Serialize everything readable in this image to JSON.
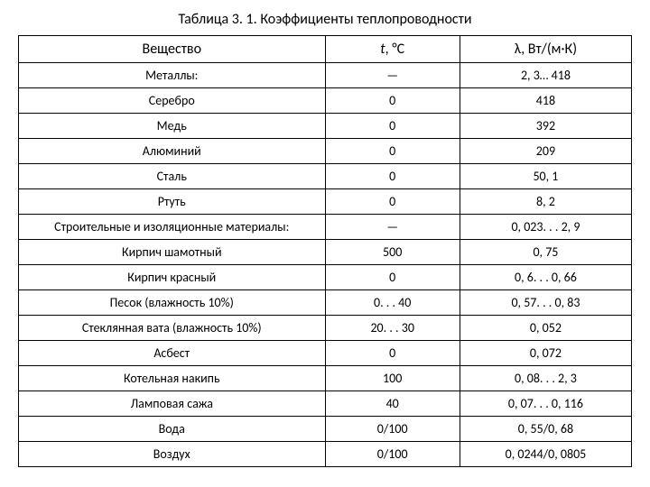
{
  "title": "Таблица 3. 1. Коэффициенты теплопроводности",
  "headers": {
    "substance": "Вещество",
    "temp_prefix": "t",
    "temp_suffix": ", °С",
    "lambda_prefix": "λ",
    "lambda_suffix": ", Вт/(м·К)"
  },
  "rows": [
    {
      "substance": "Металлы:",
      "temp": "—",
      "lambda": "2, 3… 418"
    },
    {
      "substance": "Серебро",
      "temp": "0",
      "lambda": "418"
    },
    {
      "substance": "Медь",
      "temp": "0",
      "lambda": "392"
    },
    {
      "substance": "Алюминий",
      "temp": "0",
      "lambda": "209"
    },
    {
      "substance": "Сталь",
      "temp": "0",
      "lambda": "50, 1"
    },
    {
      "substance": "Ртуть",
      "temp": "0",
      "lambda": "8, 2"
    },
    {
      "substance": "Строительные и изоляционные материалы:",
      "temp": "—",
      "lambda": "0, 023. . . 2, 9"
    },
    {
      "substance": "Кирпич шамотный",
      "temp": "500",
      "lambda": "0, 75"
    },
    {
      "substance": "Кирпич красный",
      "temp": "0",
      "lambda": "0, 6. . . 0, 66"
    },
    {
      "substance": "Песок (влажность 10%)",
      "temp": "0. . . 40",
      "lambda": "0, 57. . . 0, 83"
    },
    {
      "substance": "Стеклянная вата (влажность 10%)",
      "temp": "20. . . 30",
      "lambda": "0, 052"
    },
    {
      "substance": "Асбест",
      "temp": "0",
      "lambda": "0, 072"
    },
    {
      "substance": "Котельная накипь",
      "temp": "100",
      "lambda": "0, 08. . . 2, 3"
    },
    {
      "substance": "Ламповая сажа",
      "temp": "40",
      "lambda": "0, 07. . . 0, 116"
    },
    {
      "substance": "Вода",
      "temp": "0/100",
      "lambda": "0, 55/0, 68"
    },
    {
      "substance": "Воздух",
      "temp": "0/100",
      "lambda": "0, 0244/0, 0805"
    }
  ],
  "styling": {
    "font_family": "Calibri, Arial, sans-serif",
    "title_fontsize": 16,
    "cell_fontsize": 14,
    "header_fontsize": 16,
    "text_color": "#000000",
    "border_color": "#000000",
    "background_color": "#ffffff",
    "col_widths": [
      "50%",
      "22%",
      "28%"
    ],
    "row_padding": "5px 4px"
  }
}
